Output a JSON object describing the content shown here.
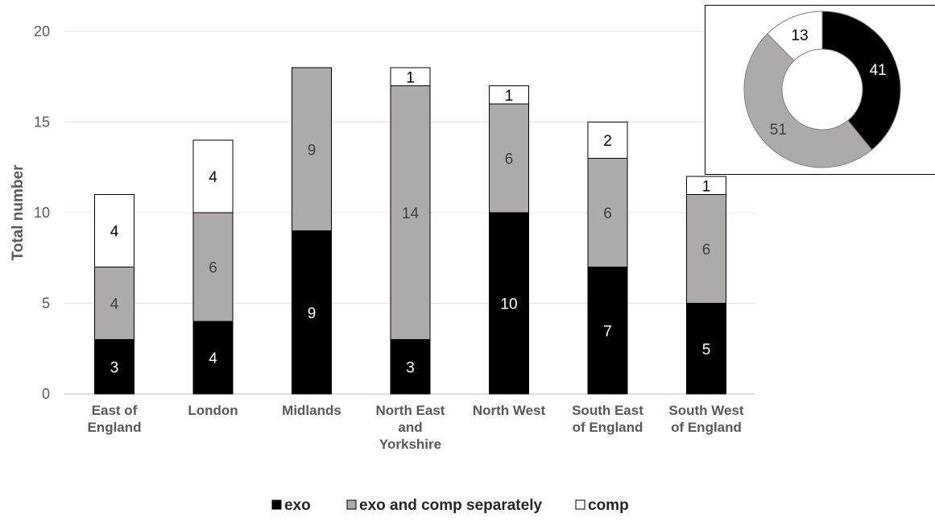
{
  "chart_data": [
    {
      "type": "bar",
      "stacked": true,
      "ylabel": "Total number",
      "ylim": [
        0,
        20
      ],
      "yticks": [
        0,
        5,
        10,
        15,
        20
      ],
      "grid": true,
      "legend_position": "bottom",
      "categories": [
        [
          "East of",
          "England"
        ],
        [
          "London"
        ],
        [
          "Midlands"
        ],
        [
          "North East",
          "and",
          "Yorkshire"
        ],
        [
          "North West"
        ],
        [
          "South East",
          "of England"
        ],
        [
          "South West",
          "of England"
        ]
      ],
      "series": [
        {
          "name": "exo",
          "color": "#000000",
          "label_color": "#ffffff",
          "values": [
            3,
            4,
            9,
            3,
            10,
            7,
            5
          ]
        },
        {
          "name": "exo and comp separately",
          "color": "#aeaaaa",
          "label_color": "#404040",
          "values": [
            4,
            6,
            9,
            14,
            6,
            6,
            6
          ]
        },
        {
          "name": "comp",
          "color": "#ffffff",
          "label_color": "#000000",
          "values": [
            4,
            4,
            0,
            1,
            1,
            2,
            1
          ]
        }
      ]
    },
    {
      "type": "pie",
      "donut": true,
      "slices": [
        {
          "label": "exo",
          "value": 41,
          "color": "#000000",
          "label_color": "#ffffff"
        },
        {
          "label": "exo and comp separately",
          "value": 51,
          "color": "#aeaaaa",
          "label_color": "#404040"
        },
        {
          "label": "comp",
          "value": 13,
          "color": "#ffffff",
          "label_color": "#000000"
        }
      ]
    }
  ]
}
